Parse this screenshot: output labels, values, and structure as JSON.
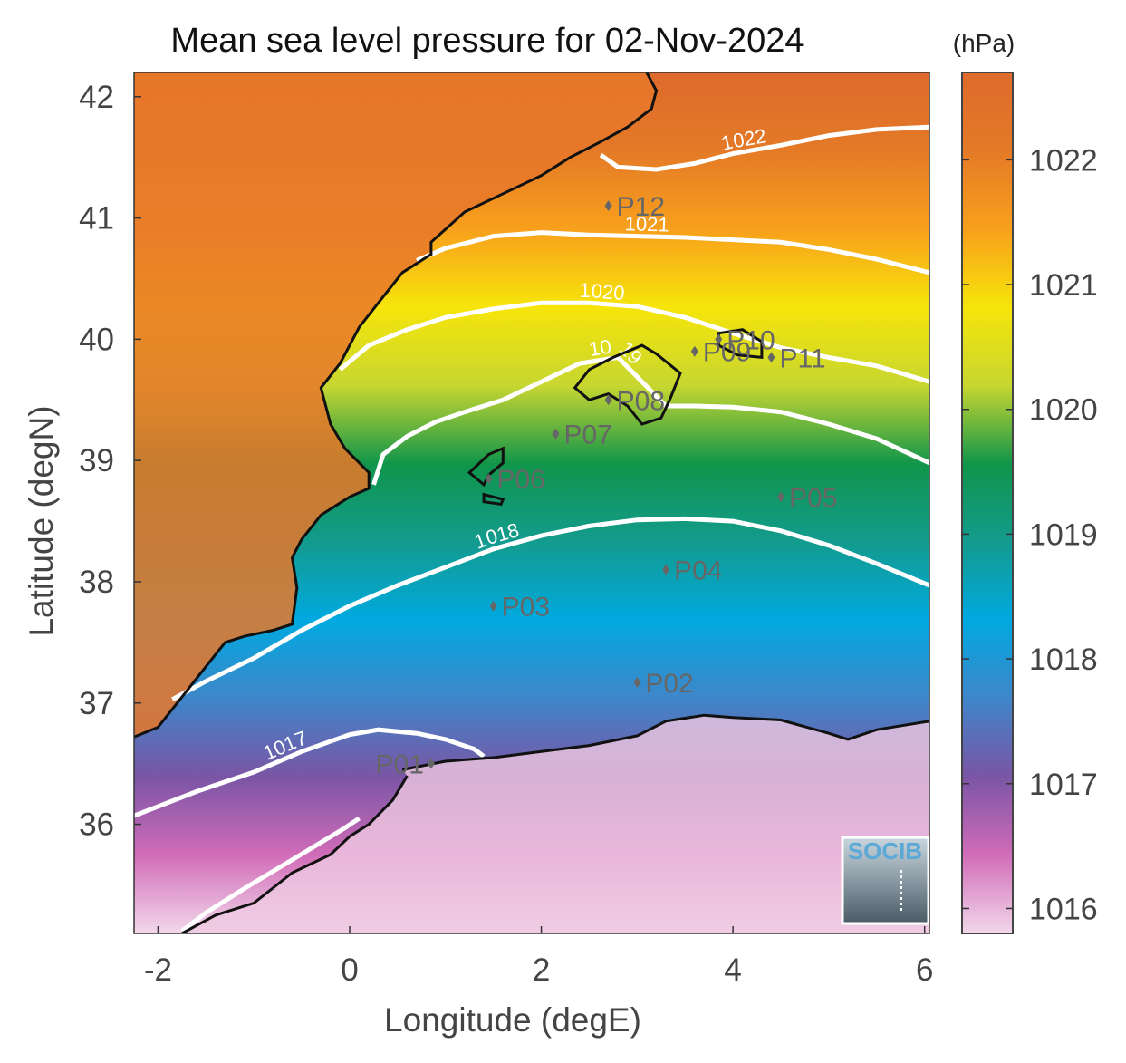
{
  "chart_data": {
    "type": "heatmap",
    "title": "Mean sea level pressure for 02-Nov-2024",
    "xlabel": "Longitude (degE)",
    "ylabel": "Latitude (degN)",
    "xlim": [
      -2.25,
      6.05
    ],
    "ylim": [
      35.1,
      42.2
    ],
    "xticks": [
      -2,
      0,
      2,
      4,
      6
    ],
    "xtick_labels": [
      "-2",
      "0",
      "2",
      "4",
      "6"
    ],
    "yticks": [
      36,
      37,
      38,
      39,
      40,
      41,
      42
    ],
    "ytick_labels": [
      "36",
      "37",
      "38",
      "39",
      "40",
      "41",
      "42"
    ],
    "colorbar": {
      "unit": "(hPa)",
      "range": [
        1015.8,
        1022.7
      ],
      "ticks": [
        1016,
        1017,
        1018,
        1019,
        1020,
        1021,
        1022
      ],
      "tick_labels": [
        "1016",
        "1017",
        "1018",
        "1019",
        "1020",
        "1021",
        "1022"
      ],
      "colors": [
        "#f2d8ea",
        "#d16cb8",
        "#7a55a5",
        "#3f86c9",
        "#00a9e0",
        "#139b8e",
        "#10954a",
        "#c7d630",
        "#f6e50a",
        "#f8a01c",
        "#e47a27",
        "#de6a2c"
      ]
    },
    "contours": [
      {
        "level": 1017,
        "label": "1017",
        "points": [
          [
            -2.25,
            36.07
          ],
          [
            -1.6,
            36.27
          ],
          [
            -1.0,
            36.43
          ],
          [
            -0.5,
            36.6
          ],
          [
            0.0,
            36.74
          ],
          [
            0.3,
            36.78
          ],
          [
            0.7,
            36.75
          ],
          [
            1.0,
            36.7
          ],
          [
            1.3,
            36.62
          ],
          [
            1.4,
            36.56
          ]
        ]
      },
      {
        "level": 1017,
        "label": "",
        "points": [
          [
            -1.75,
            35.12
          ],
          [
            -1.5,
            35.27
          ],
          [
            -1.1,
            35.47
          ],
          [
            -0.7,
            35.66
          ],
          [
            -0.3,
            35.85
          ],
          [
            -0.05,
            35.97
          ],
          [
            0.1,
            36.05
          ]
        ]
      },
      {
        "level": 1018,
        "label": "1018",
        "points": [
          [
            -1.85,
            37.03
          ],
          [
            -1.5,
            37.18
          ],
          [
            -1.0,
            37.37
          ],
          [
            -0.5,
            37.6
          ],
          [
            0.0,
            37.8
          ],
          [
            0.5,
            37.97
          ],
          [
            1.0,
            38.12
          ],
          [
            1.5,
            38.27
          ],
          [
            2.0,
            38.38
          ],
          [
            2.5,
            38.46
          ],
          [
            3.0,
            38.51
          ],
          [
            3.5,
            38.52
          ],
          [
            4.0,
            38.5
          ],
          [
            4.5,
            38.42
          ],
          [
            5.0,
            38.3
          ],
          [
            5.5,
            38.15
          ],
          [
            6.05,
            37.97
          ]
        ]
      },
      {
        "level": 1019,
        "label": "1019",
        "points": [
          [
            0.25,
            38.8
          ],
          [
            0.35,
            39.05
          ],
          [
            0.6,
            39.2
          ],
          [
            0.9,
            39.32
          ],
          [
            1.2,
            39.4
          ],
          [
            1.6,
            39.5
          ],
          [
            2.0,
            39.65
          ],
          [
            2.4,
            39.8
          ],
          [
            2.8,
            39.85
          ],
          [
            3.3,
            39.45
          ],
          [
            3.6,
            39.45
          ],
          [
            4.0,
            39.44
          ],
          [
            4.5,
            39.4
          ],
          [
            5.0,
            39.3
          ],
          [
            5.5,
            39.18
          ],
          [
            6.05,
            38.98
          ]
        ]
      },
      {
        "level": 1020,
        "label": "1020",
        "points": [
          [
            -0.1,
            39.75
          ],
          [
            0.2,
            39.95
          ],
          [
            0.6,
            40.08
          ],
          [
            1.0,
            40.18
          ],
          [
            1.5,
            40.25
          ],
          [
            2.0,
            40.3
          ],
          [
            2.5,
            40.3
          ],
          [
            3.0,
            40.27
          ],
          [
            3.5,
            40.18
          ],
          [
            4.0,
            40.05
          ],
          [
            4.5,
            39.93
          ],
          [
            5.0,
            39.85
          ],
          [
            5.5,
            39.78
          ],
          [
            6.05,
            39.65
          ]
        ]
      },
      {
        "level": 1021,
        "label": "1021",
        "points": [
          [
            0.7,
            40.65
          ],
          [
            1.0,
            40.75
          ],
          [
            1.5,
            40.85
          ],
          [
            2.0,
            40.88
          ],
          [
            2.5,
            40.86
          ],
          [
            3.0,
            40.85
          ],
          [
            3.5,
            40.84
          ],
          [
            4.0,
            40.82
          ],
          [
            4.5,
            40.8
          ],
          [
            5.0,
            40.74
          ],
          [
            5.5,
            40.66
          ],
          [
            6.05,
            40.55
          ]
        ]
      },
      {
        "level": 1022,
        "label": "1022",
        "points": [
          [
            2.62,
            41.52
          ],
          [
            2.8,
            41.42
          ],
          [
            3.2,
            41.4
          ],
          [
            3.6,
            41.45
          ],
          [
            4.0,
            41.53
          ],
          [
            4.5,
            41.6
          ],
          [
            5.0,
            41.68
          ],
          [
            5.5,
            41.73
          ],
          [
            6.05,
            41.75
          ]
        ]
      }
    ],
    "stations": [
      {
        "name": "P01",
        "lon": 0.85,
        "lat": 36.5,
        "label_side": "left"
      },
      {
        "name": "P02",
        "lon": 3.0,
        "lat": 37.17
      },
      {
        "name": "P03",
        "lon": 1.5,
        "lat": 37.8
      },
      {
        "name": "P04",
        "lon": 3.3,
        "lat": 38.1
      },
      {
        "name": "P05",
        "lon": 4.5,
        "lat": 38.7
      },
      {
        "name": "P06",
        "lon": 1.45,
        "lat": 38.85
      },
      {
        "name": "P07",
        "lon": 2.15,
        "lat": 39.22
      },
      {
        "name": "P08",
        "lon": 2.7,
        "lat": 39.5
      },
      {
        "name": "P09",
        "lon": 3.6,
        "lat": 39.9
      },
      {
        "name": "P10",
        "lon": 3.85,
        "lat": 40.0
      },
      {
        "name": "P11",
        "lon": 4.4,
        "lat": 39.85
      },
      {
        "name": "P12",
        "lon": 2.7,
        "lat": 41.1
      }
    ],
    "coastline_iberia": [
      [
        -2.25,
        36.72
      ],
      [
        -2.0,
        36.8
      ],
      [
        -1.75,
        37.05
      ],
      [
        -1.5,
        37.3
      ],
      [
        -1.3,
        37.5
      ],
      [
        -1.1,
        37.55
      ],
      [
        -0.8,
        37.6
      ],
      [
        -0.6,
        37.65
      ],
      [
        -0.55,
        37.95
      ],
      [
        -0.6,
        38.2
      ],
      [
        -0.5,
        38.35
      ],
      [
        -0.3,
        38.55
      ],
      [
        0.0,
        38.7
      ],
      [
        0.2,
        38.77
      ],
      [
        0.2,
        38.9
      ],
      [
        -0.05,
        39.1
      ],
      [
        -0.2,
        39.3
      ],
      [
        -0.3,
        39.6
      ],
      [
        -0.1,
        39.8
      ],
      [
        0.1,
        40.1
      ],
      [
        0.3,
        40.3
      ],
      [
        0.55,
        40.55
      ],
      [
        0.85,
        40.7
      ],
      [
        0.85,
        40.8
      ],
      [
        1.2,
        41.05
      ],
      [
        1.6,
        41.2
      ],
      [
        2.0,
        41.35
      ],
      [
        2.3,
        41.5
      ],
      [
        2.6,
        41.62
      ],
      [
        2.9,
        41.75
      ],
      [
        3.15,
        41.9
      ],
      [
        3.2,
        42.05
      ],
      [
        3.1,
        42.2
      ]
    ],
    "coastline_africa": [
      [
        0.55,
        36.45
      ],
      [
        1.0,
        36.52
      ],
      [
        1.5,
        36.55
      ],
      [
        2.0,
        36.6
      ],
      [
        2.5,
        36.65
      ],
      [
        3.0,
        36.73
      ],
      [
        3.3,
        36.85
      ],
      [
        3.7,
        36.9
      ],
      [
        4.0,
        36.88
      ],
      [
        4.5,
        36.86
      ],
      [
        5.0,
        36.75
      ],
      [
        5.2,
        36.7
      ],
      [
        5.5,
        36.78
      ],
      [
        6.05,
        36.85
      ]
    ],
    "coastline_morocco": [
      [
        -1.75,
        35.1
      ],
      [
        -1.4,
        35.25
      ],
      [
        -1.0,
        35.35
      ],
      [
        -0.6,
        35.6
      ],
      [
        -0.2,
        35.75
      ],
      [
        0.0,
        35.9
      ],
      [
        0.2,
        36.0
      ],
      [
        0.45,
        36.2
      ],
      [
        0.6,
        36.4
      ]
    ]
  },
  "logo": {
    "text": "SOCIB"
  }
}
